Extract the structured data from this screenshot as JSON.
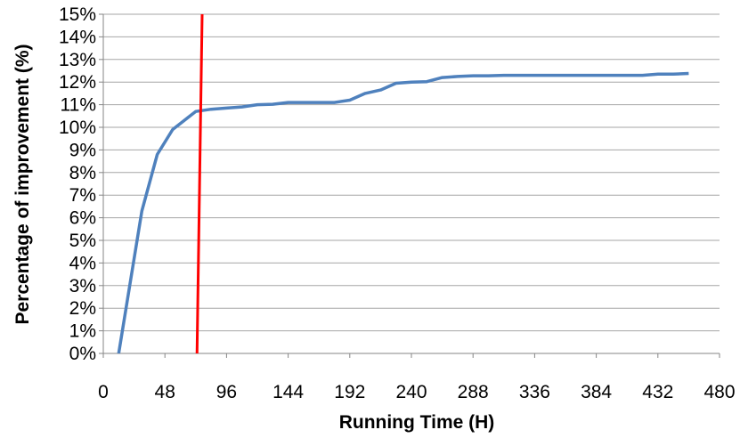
{
  "chart_data": {
    "type": "line",
    "xlabel": "Running Time (H)",
    "ylabel": "Percentage of improvement (%)",
    "xlim": [
      0,
      480
    ],
    "ylim": [
      0,
      15
    ],
    "x_ticks": [
      "0",
      "48",
      "96",
      "144",
      "192",
      "240",
      "288",
      "336",
      "384",
      "432",
      "480"
    ],
    "y_ticks": [
      "0%",
      "1%",
      "2%",
      "3%",
      "4%",
      "5%",
      "6%",
      "7%",
      "8%",
      "9%",
      "10%",
      "11%",
      "12%",
      "13%",
      "14%",
      "15%"
    ],
    "grid": true,
    "series": [
      {
        "color": "#4f81bd",
        "x": [
          12,
          30,
          42,
          54,
          72,
          84,
          96,
          108,
          120,
          132,
          144,
          156,
          168,
          180,
          192,
          204,
          216,
          228,
          240,
          252,
          264,
          276,
          288,
          300,
          312,
          324,
          336,
          348,
          360,
          372,
          384,
          396,
          408,
          420,
          432,
          444,
          456
        ],
        "y": [
          0,
          6.3,
          8.8,
          9.9,
          10.7,
          10.8,
          10.85,
          10.9,
          11.0,
          11.02,
          11.1,
          11.1,
          11.1,
          11.1,
          11.2,
          11.5,
          11.65,
          11.95,
          12.0,
          12.02,
          12.2,
          12.25,
          12.28,
          12.28,
          12.3,
          12.3,
          12.3,
          12.3,
          12.3,
          12.3,
          12.3,
          12.3,
          12.3,
          12.3,
          12.35,
          12.35,
          12.38
        ]
      }
    ],
    "markers": [
      {
        "type": "vertical-line",
        "color": "#ff0000",
        "x_bottom": 73,
        "x_top": 77
      }
    ]
  }
}
